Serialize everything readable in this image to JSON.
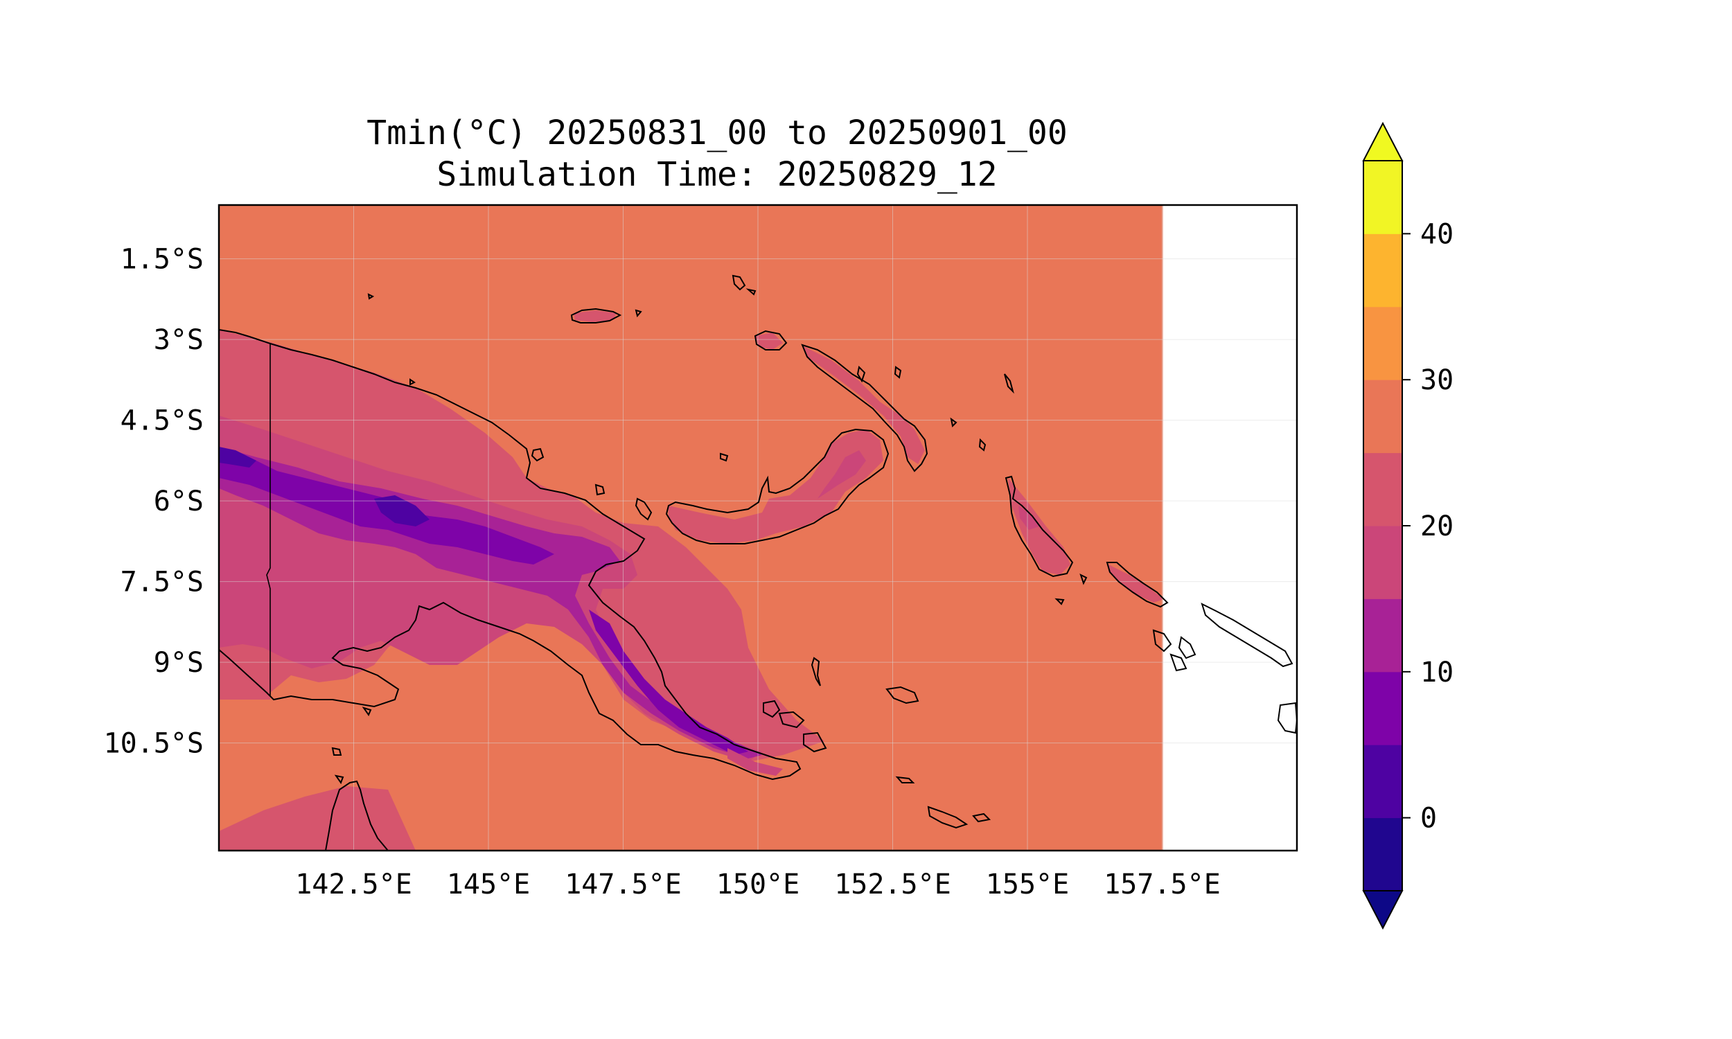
{
  "title": {
    "line1": "Tmin(°C) 20250831_00 to 20250901_00",
    "line2": "Simulation Time: 20250829_12"
  },
  "map": {
    "lon_range": [
      140.0,
      160.0
    ],
    "lat_range": [
      -12.5,
      -0.5
    ],
    "data_lon_max": 157.5,
    "ocean_value_color": "#e97657",
    "x_ticks": [
      {
        "value": 142.5,
        "label": "142.5°E"
      },
      {
        "value": 145.0,
        "label": "145°E"
      },
      {
        "value": 147.5,
        "label": "147.5°E"
      },
      {
        "value": 150.0,
        "label": "150°E"
      },
      {
        "value": 152.5,
        "label": "152.5°E"
      },
      {
        "value": 155.0,
        "label": "155°E"
      },
      {
        "value": 157.5,
        "label": "157.5°E"
      }
    ],
    "y_ticks": [
      {
        "value": -1.5,
        "label": "1.5°S"
      },
      {
        "value": -3.0,
        "label": "3°S"
      },
      {
        "value": -4.5,
        "label": "4.5°S"
      },
      {
        "value": -6.0,
        "label": "6°S"
      },
      {
        "value": -7.5,
        "label": "7.5°S"
      },
      {
        "value": -9.0,
        "label": "9°S"
      },
      {
        "value": -10.5,
        "label": "10.5°S"
      }
    ]
  },
  "colorbar": {
    "levels": [
      -5,
      0,
      5,
      10,
      15,
      20,
      25,
      30,
      35,
      40,
      45
    ],
    "colors": [
      "#20068f",
      "#4e02a2",
      "#7e03a8",
      "#a82296",
      "#cb4679",
      "#d6556d",
      "#e97657",
      "#f89441",
      "#fdb42f",
      "#f1f525"
    ],
    "under_color": "#0d0887",
    "over_color": "#f0f921",
    "ticks": [
      {
        "value": 0,
        "label": "0"
      },
      {
        "value": 10,
        "label": "10"
      },
      {
        "value": 20,
        "label": "20"
      },
      {
        "value": 30,
        "label": "30"
      },
      {
        "value": 40,
        "label": "40"
      }
    ]
  }
}
